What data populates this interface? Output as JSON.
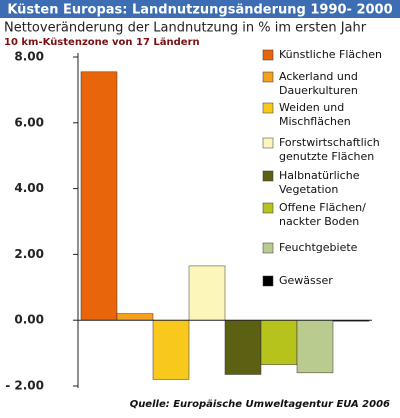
{
  "chart_data": {
    "type": "bar",
    "title": "Küsten Europas: Landnutzungsänderung 1990- 2000",
    "subtitle": "Nettoveränderung der Landnutzung in % im ersten Jahr",
    "note": "10 km-Küstenzone von  17 Ländern",
    "source": "Quelle: Europäische Umweltagentur EUA 2006",
    "categories": [
      "Künstliche Flächen",
      "Ackerland und\nDauerkulturen",
      "Weiden und\nMischflächen",
      "Forstwirtschaftlich\ngenutzte Flächen",
      "Halbnatürliche\nVegetation",
      "Offene Flächen/\nnackter Boden",
      "Feuchtgebiete",
      "Gewässer"
    ],
    "values": [
      7.55,
      0.2,
      -1.8,
      1.65,
      -1.65,
      -1.35,
      -1.6,
      -0.02
    ],
    "colors": [
      "#e8650a",
      "#f5a01e",
      "#f8c81c",
      "#fdf6bb",
      "#5c6012",
      "#b5c31c",
      "#b9cb8e",
      "#000000"
    ],
    "ylim": [
      -2,
      8
    ],
    "yticks": [
      {
        "value": -2,
        "label": "- 2.00"
      },
      {
        "value": 0,
        "label": "0.00"
      },
      {
        "value": 2,
        "label": "2.00"
      },
      {
        "value": 4,
        "label": "4.00"
      },
      {
        "value": 6,
        "label": "6.00"
      },
      {
        "value": 8,
        "label": "8.00"
      }
    ]
  }
}
